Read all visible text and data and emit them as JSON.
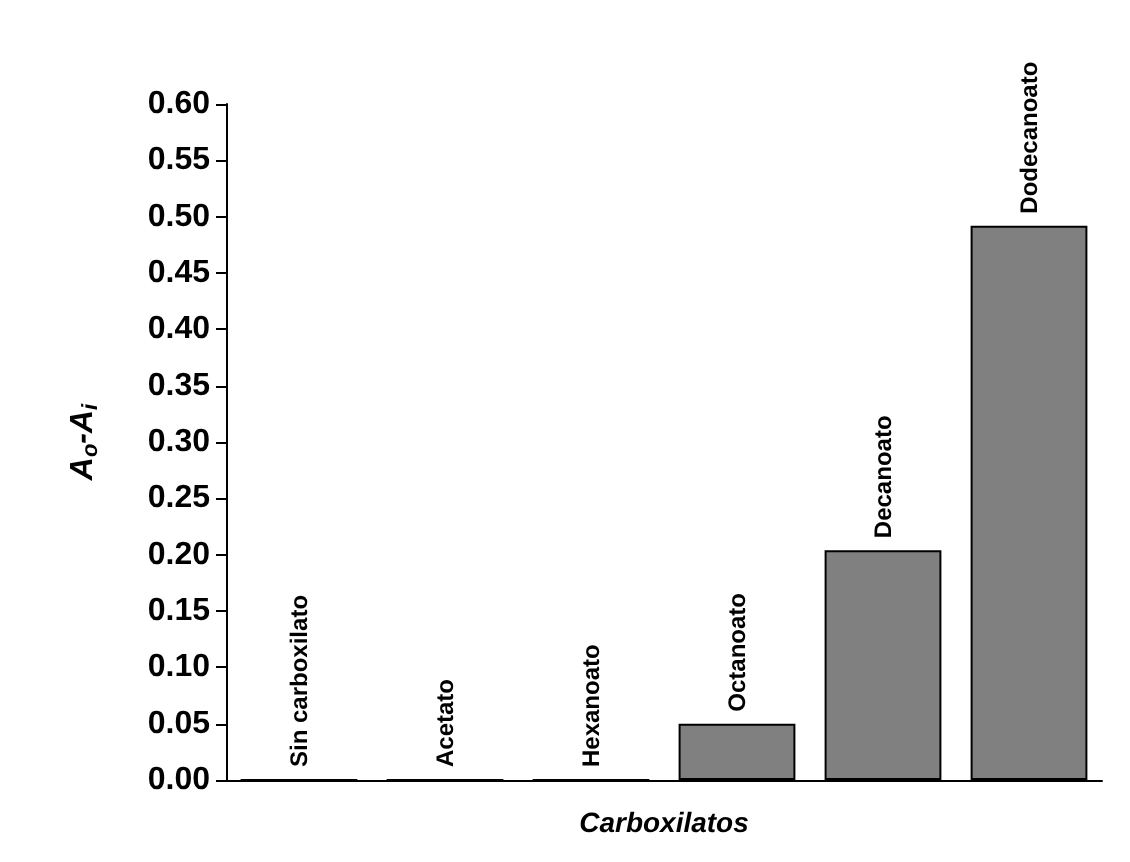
{
  "chart_data": {
    "type": "bar",
    "xlabel": "Carboxilatos",
    "ylabel": "A$_{o}$-A$_{i}$",
    "categories": [
      "Sin carboxilato",
      "Acetato",
      "Hexanoato",
      "Octanoato",
      "Decanoato",
      "Dodecanoato"
    ],
    "values": [
      0,
      0,
      0,
      0.05,
      0.204,
      0.492
    ],
    "color": "#808080",
    "ylim": [
      0,
      0.6
    ],
    "yticks": [
      {
        "value": 0,
        "label": "0.00"
      },
      {
        "value": 0.05,
        "label": "0.05"
      },
      {
        "value": 0.1,
        "label": "0.10"
      },
      {
        "value": 0.15,
        "label": "0.15"
      },
      {
        "value": 0.2,
        "label": "0.20"
      },
      {
        "value": 0.25,
        "label": "0.25"
      },
      {
        "value": 0.3,
        "label": "0.30"
      },
      {
        "value": 0.35,
        "label": "0.35"
      },
      {
        "value": 0.4,
        "label": "0.40"
      },
      {
        "value": 0.45,
        "label": "0.45"
      },
      {
        "value": 0.5,
        "label": "0.50"
      },
      {
        "value": 0.55,
        "label": "0.55"
      },
      {
        "value": 0.6,
        "label": "0.60"
      }
    ],
    "grid": false
  }
}
